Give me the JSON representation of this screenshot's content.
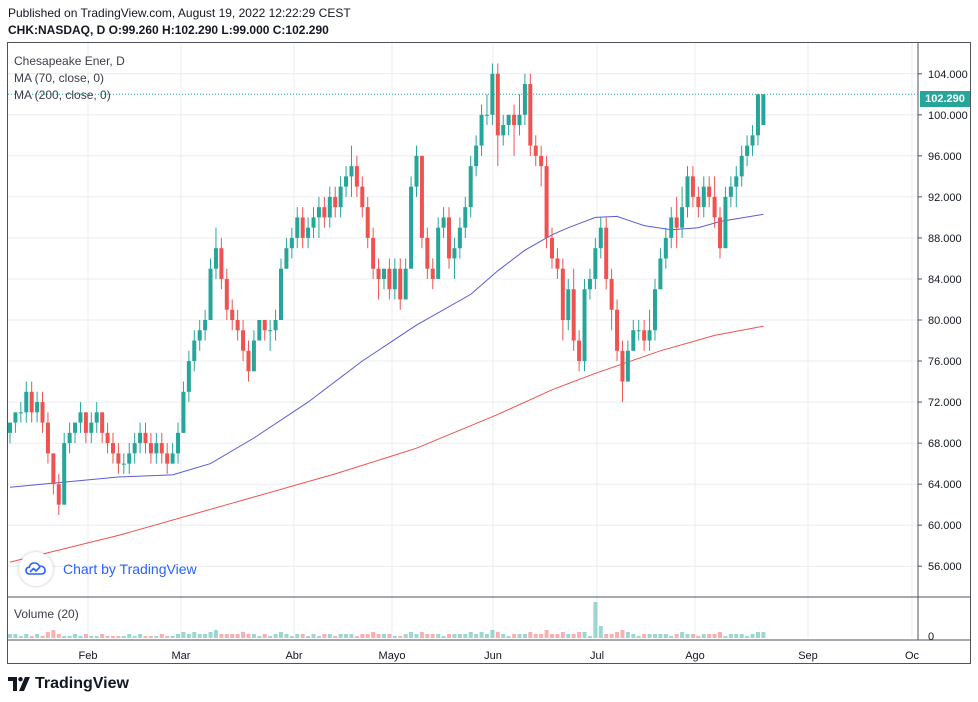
{
  "header": {
    "published": "Published on TradingView.com, August 19, 2022 12:22:29 CEST",
    "ohlc": "CHK:NASDAQ, D  O:99.260 H:102.290 L:99.000 C:102.290"
  },
  "legend": {
    "title": "Chesapeake Ener, D",
    "ma70": "MA (70, close, 0)",
    "ma200": "MA (200, close, 0)"
  },
  "volume_title": "Volume (20)",
  "watermark": "Chart by TradingView",
  "footer_logo": "TradingView",
  "last_price": "102.290",
  "colors": {
    "up": "#26a69a",
    "down": "#ef5350",
    "ma70": "#5b5bd6",
    "ma200": "#ef5350",
    "grid": "#e9ecf2"
  },
  "chart_data": {
    "type": "candlestick",
    "symbol": "CHK:NASDAQ",
    "interval": "D",
    "y_ticks": [
      "56.000",
      "60.000",
      "64.000",
      "68.000",
      "72.000",
      "76.000",
      "80.000",
      "84.000",
      "88.000",
      "92.000",
      "96.000",
      "100.000",
      "104.000"
    ],
    "ylim": [
      53,
      107
    ],
    "x_ticks": [
      "Feb",
      "Mar",
      "Abr",
      "Mayo",
      "Jun",
      "Jul",
      "Ago",
      "Sep",
      "Oc"
    ],
    "volume_ticks": [
      "0"
    ],
    "bars": [
      [
        69,
        70,
        68,
        70
      ],
      [
        70,
        71,
        69,
        71
      ],
      [
        71,
        72,
        70,
        71
      ],
      [
        71,
        74,
        70,
        73
      ],
      [
        73,
        74,
        70,
        71
      ],
      [
        71,
        73,
        70,
        72
      ],
      [
        72,
        73,
        69,
        70
      ],
      [
        70,
        71,
        66,
        67
      ],
      [
        67,
        67,
        63,
        64
      ],
      [
        64,
        65,
        61,
        62
      ],
      [
        62,
        69,
        62,
        68
      ],
      [
        68,
        70,
        67,
        69
      ],
      [
        69,
        70,
        68,
        70
      ],
      [
        70,
        72,
        69,
        71
      ],
      [
        71,
        71,
        68,
        69
      ],
      [
        69,
        71,
        68,
        70
      ],
      [
        70,
        72,
        69,
        71
      ],
      [
        71,
        71,
        68,
        69
      ],
      [
        69,
        70,
        67,
        68
      ],
      [
        68,
        69,
        66,
        67
      ],
      [
        67,
        68,
        65,
        66
      ],
      [
        66,
        67,
        65,
        66
      ],
      [
        66,
        68,
        65,
        67
      ],
      [
        67,
        69,
        66,
        68
      ],
      [
        68,
        70,
        67,
        69
      ],
      [
        69,
        70,
        67,
        68
      ],
      [
        68,
        69,
        66,
        67
      ],
      [
        67,
        69,
        66,
        68
      ],
      [
        68,
        69,
        66,
        67
      ],
      [
        67,
        68,
        65,
        66
      ],
      [
        66,
        68,
        66,
        67
      ],
      [
        67,
        70,
        66,
        69
      ],
      [
        69,
        74,
        69,
        73
      ],
      [
        73,
        77,
        72,
        76
      ],
      [
        76,
        79,
        75,
        78
      ],
      [
        78,
        80,
        77,
        79
      ],
      [
        79,
        81,
        78,
        80
      ],
      [
        80,
        86,
        80,
        85
      ],
      [
        85,
        89,
        84,
        87
      ],
      [
        87,
        88,
        83,
        84
      ],
      [
        84,
        85,
        80,
        81
      ],
      [
        81,
        82,
        79,
        80
      ],
      [
        80,
        81,
        78,
        79
      ],
      [
        79,
        80,
        76,
        77
      ],
      [
        77,
        78,
        74,
        75
      ],
      [
        75,
        79,
        75,
        78
      ],
      [
        78,
        80,
        78,
        80
      ],
      [
        80,
        80,
        78,
        79
      ],
      [
        79,
        80,
        77,
        79
      ],
      [
        79,
        81,
        78,
        80
      ],
      [
        80,
        86,
        80,
        85
      ],
      [
        85,
        88,
        85,
        87
      ],
      [
        87,
        89,
        86,
        88
      ],
      [
        88,
        91,
        87,
        90
      ],
      [
        90,
        91,
        87,
        88
      ],
      [
        88,
        90,
        87,
        89
      ],
      [
        89,
        91,
        88,
        90
      ],
      [
        90,
        92,
        88,
        91
      ],
      [
        91,
        92,
        89,
        90
      ],
      [
        90,
        93,
        89,
        92
      ],
      [
        92,
        93,
        90,
        91
      ],
      [
        91,
        94,
        90,
        93
      ],
      [
        93,
        95,
        92,
        94
      ],
      [
        94,
        97,
        92,
        95
      ],
      [
        95,
        96,
        92,
        93
      ],
      [
        93,
        94,
        90,
        91
      ],
      [
        91,
        92,
        87,
        88
      ],
      [
        88,
        89,
        84,
        85
      ],
      [
        85,
        86,
        82,
        84
      ],
      [
        84,
        85,
        83,
        85
      ],
      [
        85,
        86,
        82,
        83
      ],
      [
        83,
        86,
        82,
        85
      ],
      [
        85,
        86,
        81,
        82
      ],
      [
        82,
        86,
        82,
        85
      ],
      [
        85,
        94,
        85,
        93
      ],
      [
        93,
        97,
        92,
        96
      ],
      [
        96,
        96,
        87,
        88
      ],
      [
        88,
        89,
        84,
        85
      ],
      [
        85,
        86,
        83,
        84
      ],
      [
        84,
        90,
        84,
        89
      ],
      [
        89,
        91,
        88,
        90
      ],
      [
        90,
        91,
        85,
        86
      ],
      [
        86,
        88,
        84,
        87
      ],
      [
        87,
        90,
        86,
        89
      ],
      [
        89,
        92,
        88,
        91
      ],
      [
        91,
        96,
        90,
        95
      ],
      [
        95,
        98,
        94,
        97
      ],
      [
        97,
        101,
        96,
        100
      ],
      [
        100,
        102,
        99,
        100
      ],
      [
        100,
        105,
        99,
        104
      ],
      [
        104,
        105,
        95,
        98
      ],
      [
        98,
        100,
        97,
        99
      ],
      [
        99,
        100,
        98,
        100
      ],
      [
        100,
        101,
        96,
        99
      ],
      [
        99,
        102,
        98,
        100
      ],
      [
        100,
        104,
        99,
        103
      ],
      [
        103,
        104,
        96,
        97
      ],
      [
        97,
        98,
        95,
        96
      ],
      [
        96,
        97,
        93,
        95
      ],
      [
        95,
        96,
        87,
        88
      ],
      [
        88,
        89,
        85,
        86
      ],
      [
        86,
        87,
        84,
        85
      ],
      [
        85,
        86,
        78,
        80
      ],
      [
        80,
        84,
        79,
        83
      ],
      [
        83,
        85,
        77,
        78
      ],
      [
        78,
        79,
        75,
        76
      ],
      [
        76,
        84,
        75,
        83
      ],
      [
        83,
        85,
        82,
        84
      ],
      [
        84,
        88,
        83,
        87
      ],
      [
        87,
        90,
        86,
        89
      ],
      [
        89,
        90,
        83,
        84
      ],
      [
        84,
        85,
        79,
        81
      ],
      [
        81,
        82,
        76,
        77
      ],
      [
        77,
        78,
        72,
        74
      ],
      [
        74,
        78,
        74,
        77
      ],
      [
        77,
        80,
        77,
        79
      ],
      [
        79,
        80,
        78,
        79
      ],
      [
        79,
        80,
        77,
        78
      ],
      [
        78,
        81,
        77,
        79
      ],
      [
        79,
        84,
        78,
        83
      ],
      [
        83,
        87,
        83,
        86
      ],
      [
        86,
        89,
        85,
        88
      ],
      [
        88,
        91,
        87,
        90
      ],
      [
        90,
        92,
        87,
        89
      ],
      [
        89,
        93,
        88,
        91
      ],
      [
        91,
        95,
        90,
        94
      ],
      [
        94,
        95,
        91,
        92
      ],
      [
        92,
        93,
        90,
        91
      ],
      [
        91,
        94,
        90,
        93
      ],
      [
        93,
        94,
        91,
        92
      ],
      [
        92,
        94,
        89,
        90
      ],
      [
        90,
        91,
        86,
        87
      ],
      [
        87,
        93,
        87,
        92
      ],
      [
        92,
        94,
        91,
        93
      ],
      [
        93,
        95,
        91,
        94
      ],
      [
        94,
        97,
        93,
        96
      ],
      [
        96,
        98,
        95,
        97
      ],
      [
        97,
        99,
        96,
        98
      ],
      [
        98,
        102,
        97,
        102
      ],
      [
        99,
        102,
        99,
        102
      ]
    ],
    "ma70": [
      [
        0,
        63.7
      ],
      [
        10,
        64.2
      ],
      [
        20,
        64.7
      ],
      [
        30,
        64.9
      ],
      [
        37,
        66.0
      ],
      [
        45,
        68.5
      ],
      [
        55,
        72.0
      ],
      [
        65,
        76.0
      ],
      [
        75,
        79.5
      ],
      [
        85,
        82.5
      ],
      [
        90,
        84.8
      ],
      [
        95,
        86.8
      ],
      [
        100,
        88.3
      ],
      [
        103,
        89.0
      ],
      [
        108,
        90.0
      ],
      [
        112,
        90.1
      ],
      [
        117,
        89.2
      ],
      [
        122,
        88.8
      ],
      [
        127,
        89.0
      ],
      [
        131,
        89.6
      ],
      [
        139,
        90.3
      ]
    ],
    "ma200": [
      [
        0,
        56.4
      ],
      [
        20,
        59.0
      ],
      [
        40,
        62.0
      ],
      [
        60,
        65.0
      ],
      [
        75,
        67.5
      ],
      [
        90,
        70.8
      ],
      [
        100,
        73.2
      ],
      [
        108,
        74.8
      ],
      [
        120,
        77.0
      ],
      [
        130,
        78.5
      ],
      [
        139,
        79.4
      ]
    ],
    "volume": [
      2,
      2,
      1,
      2,
      1,
      2,
      1,
      3,
      4,
      2,
      1,
      1,
      2,
      1,
      2,
      1,
      1,
      2,
      1,
      1,
      1,
      1,
      2,
      1,
      2,
      1,
      1,
      1,
      2,
      1,
      1,
      2,
      3,
      2,
      3,
      2,
      2,
      3,
      4,
      2,
      2,
      2,
      2,
      3,
      2,
      2,
      1,
      2,
      1,
      2,
      3,
      2,
      1,
      2,
      2,
      1,
      2,
      1,
      2,
      2,
      1,
      2,
      2,
      2,
      1,
      2,
      2,
      3,
      2,
      2,
      2,
      1,
      1,
      2,
      3,
      2,
      3,
      2,
      2,
      2,
      1,
      2,
      2,
      2,
      2,
      3,
      2,
      3,
      2,
      4,
      3,
      2,
      1,
      2,
      2,
      2,
      3,
      2,
      2,
      4,
      2,
      2,
      3,
      2,
      2,
      3,
      3,
      1,
      18,
      6,
      2,
      2,
      3,
      4,
      3,
      2,
      1,
      2,
      2,
      2,
      2,
      2,
      1,
      2,
      3,
      2,
      2,
      1,
      2,
      2,
      2,
      3,
      1,
      2,
      2,
      2,
      1,
      2,
      3,
      3
    ]
  }
}
